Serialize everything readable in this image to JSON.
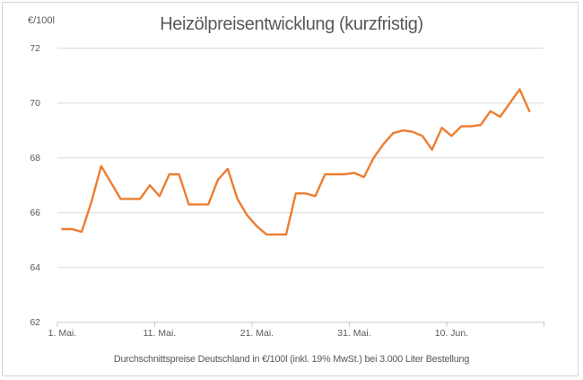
{
  "chart_data": {
    "type": "line",
    "title": "Heizölpreisentwicklung (kurzfristig)",
    "y_unit": "€/100l",
    "caption": "Durchschnittspreise Deutschland in €/100l (inkl. 19% MwSt.) bei 3.000 Liter Bestellung",
    "ylabel": "",
    "xlabel": "",
    "ylim": [
      62,
      72
    ],
    "y_ticks": [
      72,
      70,
      68,
      66,
      64,
      62
    ],
    "x_tick_labels": [
      "1. Mai.",
      "11. Mai.",
      "21. Mai.",
      "31. Mai.",
      "10. Jun."
    ],
    "x_tick_interval": 10,
    "grid": true,
    "legend": "none",
    "x": [
      "1. Mai",
      "2. Mai",
      "3. Mai",
      "4. Mai",
      "5. Mai",
      "6. Mai",
      "7. Mai",
      "8. Mai",
      "9. Mai",
      "10. Mai",
      "11. Mai",
      "12. Mai",
      "13. Mai",
      "14. Mai",
      "15. Mai",
      "16. Mai",
      "17. Mai",
      "18. Mai",
      "19. Mai",
      "20. Mai",
      "21. Mai",
      "22. Mai",
      "23. Mai",
      "24. Mai",
      "25. Mai",
      "26. Mai",
      "27. Mai",
      "28. Mai",
      "29. Mai",
      "30. Mai",
      "31. Mai",
      "1. Jun",
      "2. Jun",
      "3. Jun",
      "4. Jun",
      "5. Jun",
      "6. Jun",
      "7. Jun",
      "8. Jun",
      "9. Jun",
      "10. Jun",
      "11. Jun",
      "12. Jun",
      "13. Jun",
      "14. Jun",
      "15. Jun",
      "16. Jun",
      "17. Jun",
      "18. Jun"
    ],
    "values": [
      65.4,
      65.4,
      65.3,
      66.4,
      67.7,
      67.1,
      66.5,
      66.5,
      66.5,
      67.0,
      66.6,
      67.4,
      67.4,
      66.3,
      66.3,
      66.3,
      67.2,
      67.6,
      66.5,
      65.9,
      65.5,
      65.2,
      65.2,
      65.2,
      66.7,
      66.7,
      66.6,
      67.4,
      67.4,
      67.4,
      67.45,
      67.3,
      68.0,
      68.5,
      68.9,
      69.0,
      68.95,
      68.8,
      68.3,
      69.1,
      68.8,
      69.15,
      69.15,
      69.2,
      69.7,
      69.5,
      70.0,
      70.5,
      69.7
    ],
    "colors": {
      "line": "#ED7D31",
      "grid": "#D9D9D9",
      "axis": "#C9C9C9",
      "text": "#595959"
    }
  }
}
